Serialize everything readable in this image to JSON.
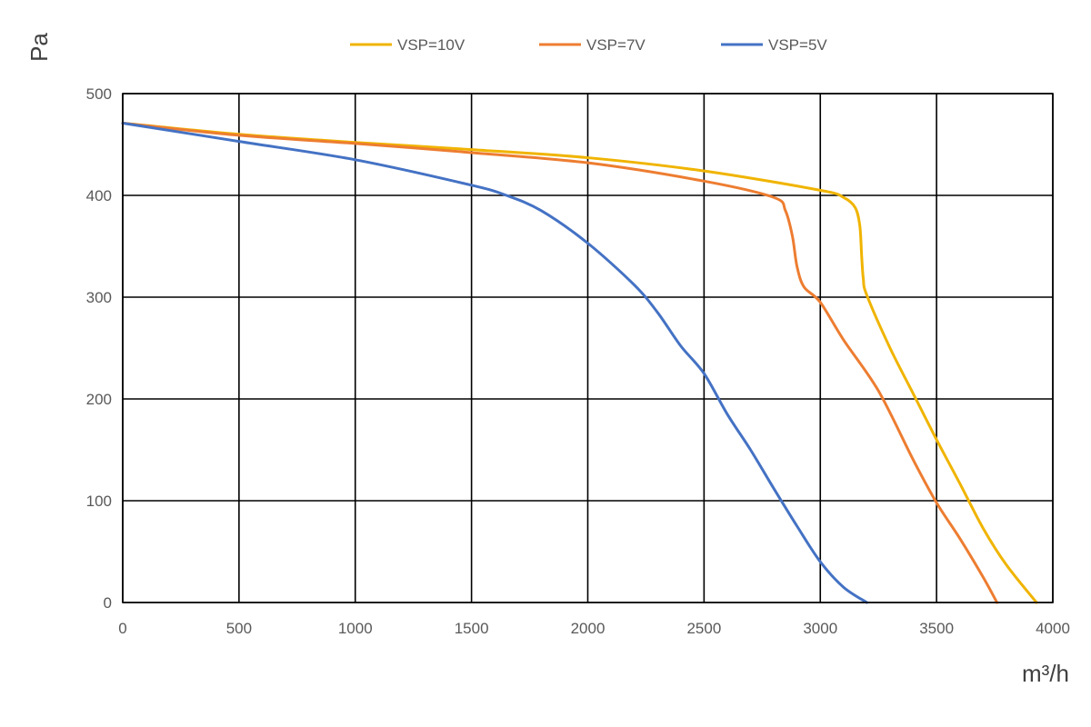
{
  "chart_data": {
    "type": "line",
    "xlabel": "m³/h",
    "ylabel": "Pa",
    "xlim": [
      0,
      4000
    ],
    "ylim": [
      0,
      500
    ],
    "x_ticks": [
      0,
      500,
      1000,
      1500,
      2000,
      2500,
      3000,
      3500,
      4000
    ],
    "y_ticks": [
      0,
      100,
      200,
      300,
      400,
      500
    ],
    "grid": true,
    "legend_position": "top",
    "series": [
      {
        "name": "VSP=10V",
        "color": "#F0B400",
        "points": [
          [
            0,
            471
          ],
          [
            500,
            460
          ],
          [
            1000,
            452
          ],
          [
            1500,
            445
          ],
          [
            2000,
            437
          ],
          [
            2500,
            424
          ],
          [
            3000,
            405
          ],
          [
            3100,
            398
          ],
          [
            3150,
            388
          ],
          [
            3170,
            370
          ],
          [
            3178,
            340
          ],
          [
            3185,
            318
          ],
          [
            3200,
            302
          ],
          [
            3300,
            250
          ],
          [
            3400,
            205
          ],
          [
            3500,
            160
          ],
          [
            3600,
            117
          ],
          [
            3700,
            73
          ],
          [
            3800,
            37
          ],
          [
            3930,
            0
          ]
        ]
      },
      {
        "name": "VSP=7V",
        "color": "#ED7D31",
        "points": [
          [
            0,
            471
          ],
          [
            500,
            459
          ],
          [
            1000,
            451
          ],
          [
            1500,
            442
          ],
          [
            2000,
            432
          ],
          [
            2500,
            414
          ],
          [
            2800,
            398
          ],
          [
            2850,
            385
          ],
          [
            2880,
            360
          ],
          [
            2900,
            330
          ],
          [
            2930,
            310
          ],
          [
            3000,
            295
          ],
          [
            3100,
            258
          ],
          [
            3250,
            208
          ],
          [
            3400,
            140
          ],
          [
            3500,
            98
          ],
          [
            3600,
            63
          ],
          [
            3700,
            25
          ],
          [
            3760,
            0
          ]
        ]
      },
      {
        "name": "VSP=5V",
        "color": "#4472C4",
        "points": [
          [
            0,
            471
          ],
          [
            500,
            453
          ],
          [
            1000,
            435
          ],
          [
            1500,
            410
          ],
          [
            1650,
            400
          ],
          [
            1800,
            385
          ],
          [
            2000,
            353
          ],
          [
            2200,
            312
          ],
          [
            2300,
            285
          ],
          [
            2400,
            252
          ],
          [
            2500,
            225
          ],
          [
            2600,
            185
          ],
          [
            2700,
            150
          ],
          [
            2800,
            112
          ],
          [
            2900,
            75
          ],
          [
            3000,
            40
          ],
          [
            3100,
            15
          ],
          [
            3200,
            0
          ]
        ]
      }
    ]
  }
}
